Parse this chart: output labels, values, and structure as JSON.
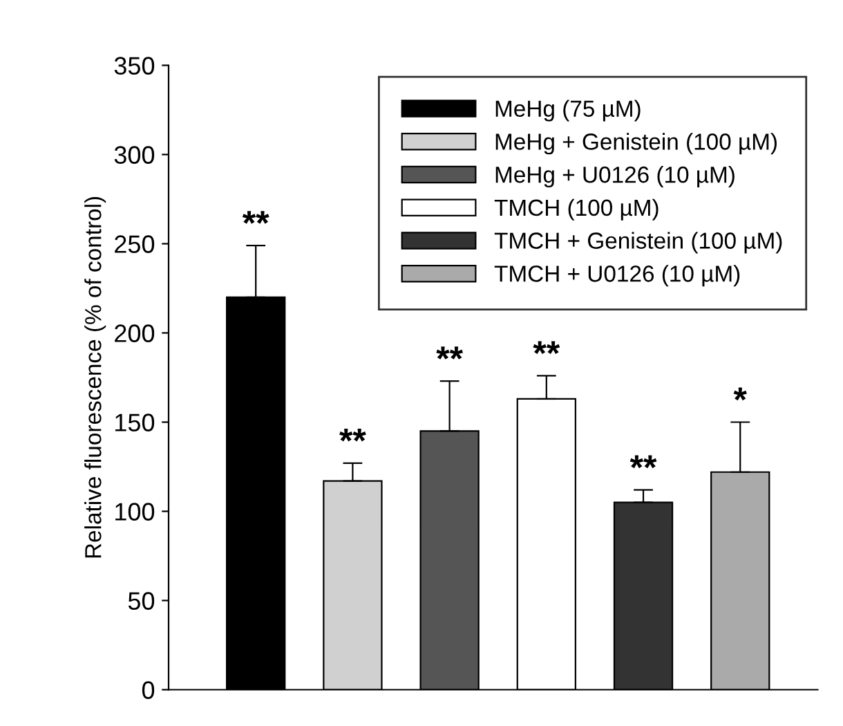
{
  "chart_data": {
    "type": "bar",
    "ylabel": "Relative fluorescence (% of control)",
    "categories": [
      null,
      null,
      null,
      null,
      null,
      null
    ],
    "series": [
      {
        "name": "MeHg (75 µM)",
        "color": "#000000",
        "values": [
          220,
          null,
          null,
          null,
          null,
          null
        ],
        "errors": [
          29,
          null,
          null,
          null,
          null,
          null
        ],
        "value_labels": [
          "**",
          null,
          null,
          null,
          null,
          null
        ]
      },
      {
        "name": "MeHg + Genistein (100 µM)",
        "color": "#d0d0d0",
        "values": [
          null,
          117,
          null,
          null,
          null,
          null
        ],
        "errors": [
          null,
          10,
          null,
          null,
          null,
          null
        ],
        "value_labels": [
          null,
          "**",
          null,
          null,
          null,
          null
        ]
      },
      {
        "name": "MeHg + U0126 (10 µM)",
        "color": "#555555",
        "values": [
          null,
          null,
          145,
          null,
          null,
          null
        ],
        "errors": [
          null,
          null,
          28,
          null,
          null,
          null
        ],
        "value_labels": [
          null,
          null,
          "**",
          null,
          null,
          null
        ]
      },
      {
        "name": "TMCH (100 µM)",
        "color": "#ffffff",
        "values": [
          null,
          null,
          null,
          163,
          null,
          null
        ],
        "errors": [
          null,
          null,
          null,
          13,
          null,
          null
        ],
        "value_labels": [
          null,
          null,
          null,
          "**",
          null,
          null
        ]
      },
      {
        "name": "TMCH + Genistein (100 µM)",
        "color": "#333333",
        "values": [
          null,
          null,
          null,
          null,
          105,
          null
        ],
        "errors": [
          null,
          null,
          null,
          null,
          7,
          null
        ],
        "value_labels": [
          null,
          null,
          null,
          null,
          "**",
          null
        ]
      },
      {
        "name": "TMCH + U0126 (10 µM)",
        "color": "#aaaaaa",
        "values": [
          null,
          null,
          null,
          null,
          null,
          122
        ],
        "errors": [
          null,
          null,
          null,
          null,
          null,
          28
        ],
        "value_labels": [
          null,
          null,
          null,
          null,
          null,
          "*"
        ]
      }
    ],
    "ylim": [
      0,
      350
    ],
    "yticks": [
      0,
      50,
      100,
      150,
      200,
      250,
      300,
      350
    ],
    "tick_labels": "y",
    "legend": "top right",
    "grid": false
  }
}
